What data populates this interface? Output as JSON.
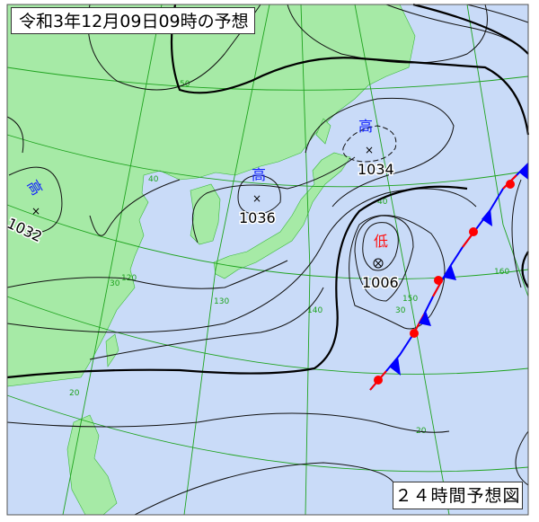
{
  "title": "令和3年12月09日09時の予想",
  "caption": "２４時間予想図",
  "colors": {
    "ocean": "#c9dbf8",
    "land": "#a6eaa6",
    "grid": "#1fa31f",
    "isobar": "#111111",
    "high": "#1020ff",
    "low": "#ff1010",
    "warm_front": "#ff0000",
    "cold_front": "#0000ff"
  },
  "pressure_systems": [
    {
      "type_label": "高",
      "value": "1032"
    },
    {
      "type_label": "高",
      "value": "1036"
    },
    {
      "type_label": "高",
      "value": "1034"
    },
    {
      "type_label": "低",
      "value": "1006"
    }
  ],
  "grid_labels": {
    "lat": [
      "50",
      "40",
      "40",
      "30",
      "30",
      "20",
      "20"
    ],
    "lon": [
      "120",
      "130",
      "140",
      "150",
      "160"
    ]
  }
}
